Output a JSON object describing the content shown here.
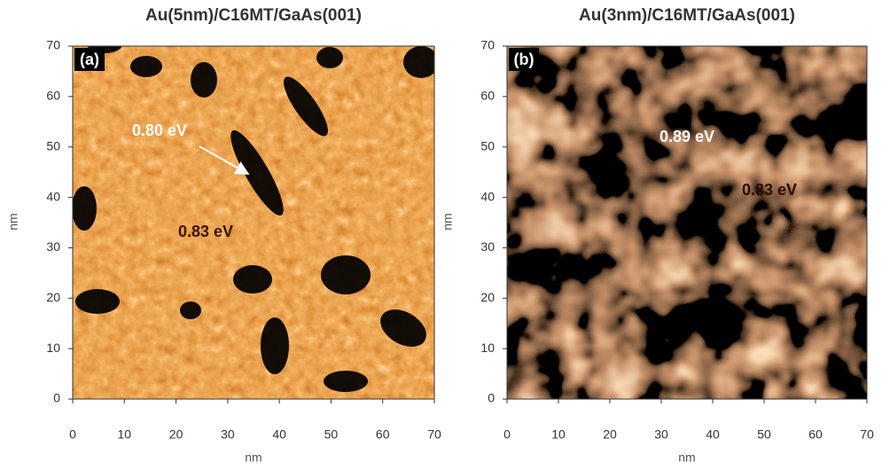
{
  "chart_data": [
    {
      "type": "image",
      "title": "Au(5nm)/C16MT/GaAs(001)",
      "panel_label": "(a)",
      "annotations": [
        "0.80 eV",
        "0.83 eV"
      ],
      "xlabel": "nm",
      "ylabel": "nm",
      "xlim": [
        0,
        70
      ],
      "ylim": [
        0,
        70
      ],
      "xticks": [
        0,
        10,
        20,
        30,
        40,
        50,
        60,
        70
      ],
      "yticks": [
        0,
        10,
        20,
        30,
        40,
        50,
        60,
        70
      ]
    },
    {
      "type": "image",
      "title": "Au(3nm)/C16MT/GaAs(001)",
      "panel_label": "(b)",
      "annotations": [
        "0.89 eV",
        "0.83 eV"
      ],
      "xlabel": "nm",
      "ylabel": "nm",
      "xlim": [
        0,
        70
      ],
      "ylim": [
        0,
        70
      ],
      "xticks": [
        0,
        10,
        20,
        30,
        40,
        50,
        60,
        70
      ],
      "yticks": [
        0,
        10,
        20,
        30,
        40,
        50,
        60,
        70
      ]
    }
  ]
}
